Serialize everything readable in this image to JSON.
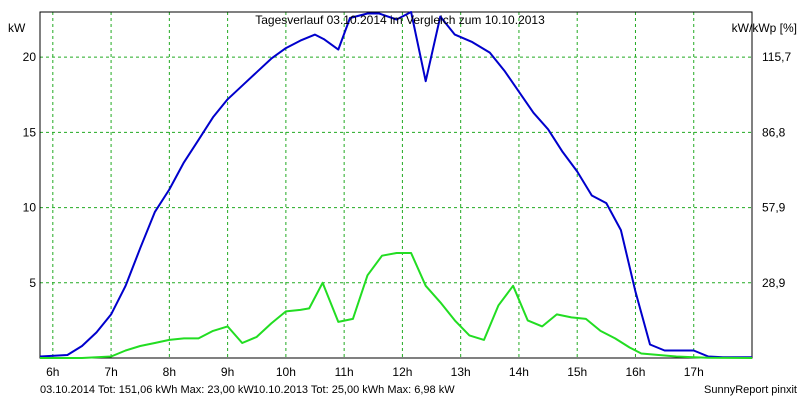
{
  "chart_data": {
    "type": "line",
    "title": "Tagesverlauf 03.10.2014 im Vergleich zum 10.10.2013",
    "ylabel_left": "kW",
    "ylabel_right": "kW/kWp [%]",
    "x_ticks": [
      "6h",
      "7h",
      "8h",
      "9h",
      "10h",
      "11h",
      "12h",
      "13h",
      "14h",
      "15h",
      "16h",
      "17h"
    ],
    "y_ticks_left": [
      "5",
      "10",
      "15",
      "20"
    ],
    "y_ticks_right": [
      "28,9",
      "57,9",
      "86,8",
      "115,7"
    ],
    "xlim": [
      5.78,
      18.0
    ],
    "ylim": [
      0,
      23
    ],
    "grid": true,
    "series": [
      {
        "name": "03.10.2014",
        "color": "#0000cc",
        "x": [
          5.78,
          6.25,
          6.5,
          6.75,
          7.0,
          7.25,
          7.5,
          7.75,
          8.0,
          8.25,
          8.5,
          8.75,
          9.0,
          9.25,
          9.5,
          9.75,
          10.0,
          10.25,
          10.5,
          10.65,
          10.9,
          11.1,
          11.4,
          11.6,
          11.9,
          12.15,
          12.4,
          12.65,
          12.9,
          13.2,
          13.5,
          13.75,
          14.0,
          14.25,
          14.5,
          14.75,
          15.0,
          15.25,
          15.5,
          15.75,
          16.0,
          16.25,
          16.5,
          16.75,
          17.0,
          17.25,
          17.5,
          18.0
        ],
        "values": [
          0.1,
          0.2,
          0.8,
          1.7,
          2.9,
          4.8,
          7.3,
          9.7,
          11.2,
          13.0,
          14.5,
          16.0,
          17.2,
          18.1,
          19.0,
          19.9,
          20.6,
          21.1,
          21.5,
          21.2,
          20.5,
          22.6,
          22.9,
          22.9,
          22.5,
          23.0,
          18.4,
          22.7,
          21.5,
          21.0,
          20.3,
          19.1,
          17.7,
          16.3,
          15.2,
          13.7,
          12.4,
          10.8,
          10.3,
          8.5,
          4.4,
          0.9,
          0.5,
          0.5,
          0.5,
          0.1,
          0.05,
          0.05
        ]
      },
      {
        "name": "10.10.2013",
        "color": "#22dd22",
        "x": [
          5.78,
          6.5,
          6.75,
          7.0,
          7.25,
          7.5,
          7.75,
          8.0,
          8.25,
          8.5,
          8.75,
          9.0,
          9.25,
          9.5,
          9.75,
          10.0,
          10.25,
          10.4,
          10.63,
          10.9,
          11.15,
          11.4,
          11.65,
          11.9,
          12.15,
          12.4,
          12.65,
          12.9,
          13.15,
          13.4,
          13.65,
          13.9,
          14.15,
          14.4,
          14.65,
          14.9,
          15.15,
          15.4,
          15.65,
          15.9,
          16.1,
          16.4,
          16.7,
          17.0,
          17.25,
          18.0
        ],
        "values": [
          0.0,
          0.0,
          0.05,
          0.1,
          0.5,
          0.8,
          1.0,
          1.2,
          1.3,
          1.3,
          1.8,
          2.1,
          1.0,
          1.4,
          2.3,
          3.1,
          3.2,
          3.3,
          5.0,
          2.4,
          2.6,
          5.5,
          6.8,
          6.98,
          6.98,
          4.8,
          3.7,
          2.5,
          1.5,
          1.2,
          3.5,
          4.8,
          2.5,
          2.1,
          2.9,
          2.7,
          2.6,
          1.8,
          1.3,
          0.7,
          0.3,
          0.2,
          0.1,
          0.05,
          0.02,
          0.0
        ]
      }
    ]
  },
  "footer": {
    "blue_text": "03.10.2014 Tot: 151,06 kWh Max: 23,00 kW",
    "green_text": "10.10.2013 Tot: 25,00 kWh Max: 6,98 kW",
    "credit": "SunnyReport pinxit"
  }
}
